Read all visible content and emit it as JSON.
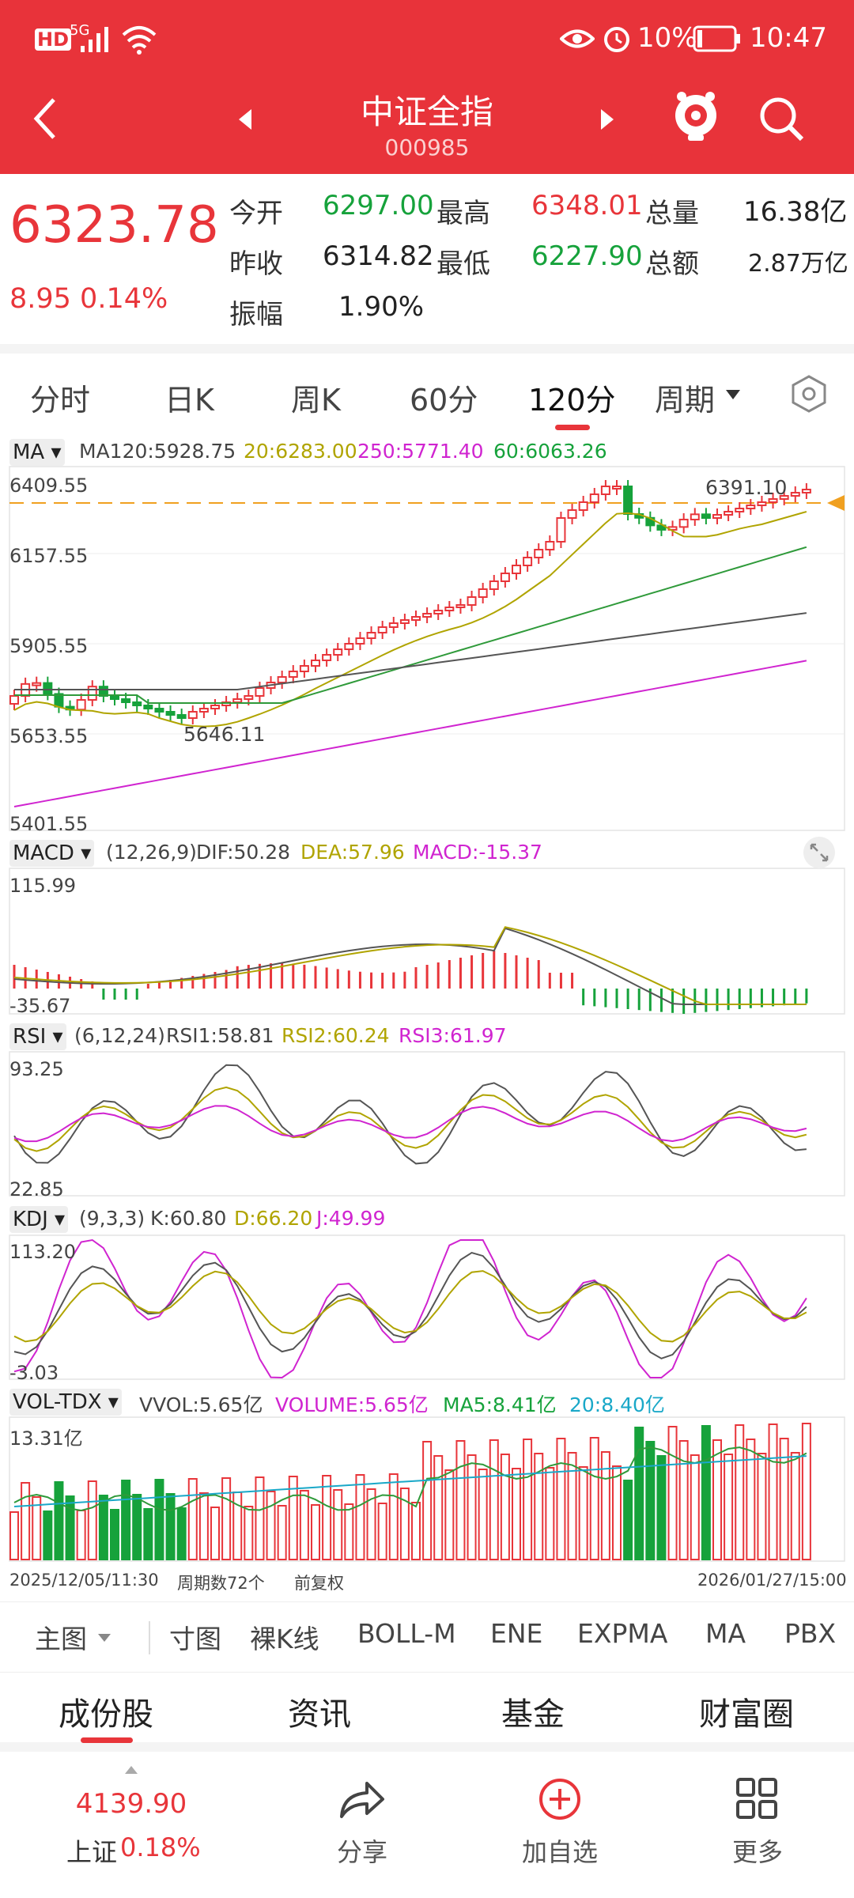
{
  "status_bar": {
    "hd": "HD",
    "net": "5G",
    "battery": "10%",
    "time": "10:47"
  },
  "header": {
    "title": "中证全指",
    "code": "000985"
  },
  "quote": {
    "price": "6323.78",
    "change": "8.95 0.14%",
    "open_label": "今开",
    "open": "6297.00",
    "high_label": "最高",
    "high": "6348.01",
    "vol_label": "总量",
    "vol": "16.38亿",
    "prev_label": "昨收",
    "prev": "6314.82",
    "low_label": "最低",
    "low": "6227.90",
    "amt_label": "总额",
    "amt": "2.87万亿",
    "amp_label": "振幅",
    "amp": "1.90%"
  },
  "tabs": [
    "分时",
    "日K",
    "周K",
    "60分",
    "120分",
    "周期"
  ],
  "ma_panel": {
    "selector": "MA",
    "ma120": "MA120:5928.75",
    "ma20": "20:6283.00",
    "ma250": "250:5771.40",
    "ma60": "60:6063.26",
    "y_labels": [
      "6409.55",
      "6157.55",
      "5905.55",
      "5653.55",
      "5401.55"
    ],
    "high_marker": "6391.10",
    "low_marker": "5646.11"
  },
  "macd_panel": {
    "selector": "MACD",
    "params": "(12,26,9)",
    "dif": "DIF:50.28",
    "dea": "DEA:57.96",
    "macd": "MACD:-15.37",
    "y_top": "115.99",
    "y_bottom": "-35.67"
  },
  "rsi_panel": {
    "selector": "RSI",
    "params": "(6,12,24)",
    "rsi1": "RSI1:58.81",
    "rsi2": "RSI2:60.24",
    "rsi3": "RSI3:61.97",
    "y_top": "93.25",
    "y_bottom": "22.85"
  },
  "kdj_panel": {
    "selector": "KDJ",
    "params": "(9,3,3)",
    "k": "K:60.80",
    "d": "D:66.20",
    "j": "J:49.99",
    "y_top": "113.20",
    "y_bottom": "-3.03"
  },
  "vol_panel": {
    "selector": "VOL-TDX",
    "vvol": "VVOL:5.65亿",
    "volume": "VOLUME:5.65亿",
    "ma5": "MA5:8.41亿",
    "ma20": "20:8.40亿",
    "y_top": "13.31亿"
  },
  "footer_info": {
    "start": "2025/12/05/11:30",
    "count": "周期数72个",
    "adj": "前复权",
    "end": "2026/01/27/15:00"
  },
  "indicator_tabs": [
    "主图",
    "寸图",
    "裸K线",
    "BOLL-M",
    "ENE",
    "EXPMA",
    "MA",
    "PBX"
  ],
  "section_tabs": [
    "成份股",
    "资讯",
    "基金",
    "财富圈"
  ],
  "nav": {
    "index_value": "4139.90",
    "index_name": "上证",
    "index_change": "0.18%",
    "share": "分享",
    "add": "加自选",
    "more": "更多"
  },
  "colors": {
    "header": "#e8333a",
    "up": "#e8353a",
    "down": "#16a23b"
  },
  "chart_data": {
    "type": "candlestick",
    "ylim": [
      5401.55,
      6409.55
    ],
    "series_names": [
      "MA120",
      "MA20",
      "MA250",
      "MA60"
    ]
  }
}
